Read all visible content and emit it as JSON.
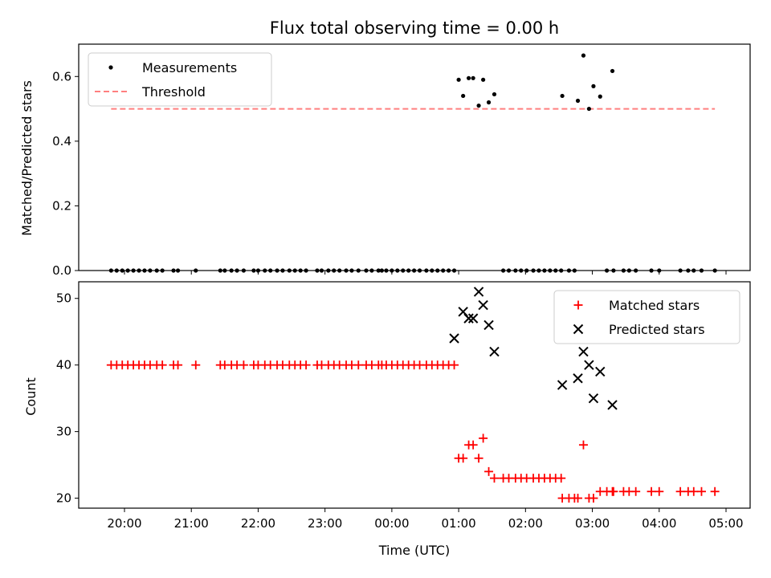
{
  "chart_data": [
    {
      "type": "scatter",
      "title": "Flux total observing time = 0.00 h",
      "xlabel": "",
      "ylabel": "Matched/Predicted stars",
      "ylim": [
        0,
        0.7
      ],
      "yticks": [
        "0.0",
        "0.2",
        "0.4",
        "0.6"
      ],
      "legend": {
        "placement": "top-left",
        "entries": [
          "Measurements",
          "Threshold"
        ]
      },
      "colors": {
        "measurements": "#000000",
        "threshold": "#ff7f7f"
      },
      "series": [
        {
          "name": "Measurements",
          "points": [
            [
              "19:48",
              0
            ],
            [
              "19:53",
              0
            ],
            [
              "19:58",
              0
            ],
            [
              "20:03",
              0
            ],
            [
              "20:08",
              0
            ],
            [
              "20:13",
              0
            ],
            [
              "20:18",
              0
            ],
            [
              "20:23",
              0
            ],
            [
              "20:29",
              0
            ],
            [
              "20:34",
              0
            ],
            [
              "20:44",
              0
            ],
            [
              "20:48",
              0
            ],
            [
              "21:04",
              0
            ],
            [
              "21:26",
              0
            ],
            [
              "21:30",
              0
            ],
            [
              "21:36",
              0
            ],
            [
              "21:41",
              0
            ],
            [
              "21:47",
              0
            ],
            [
              "21:56",
              0
            ],
            [
              "22:00",
              0
            ],
            [
              "22:06",
              0
            ],
            [
              "22:11",
              0
            ],
            [
              "22:17",
              0
            ],
            [
              "22:22",
              0
            ],
            [
              "22:28",
              0
            ],
            [
              "22:33",
              0
            ],
            [
              "22:38",
              0
            ],
            [
              "22:43",
              0
            ],
            [
              "22:53",
              0
            ],
            [
              "22:57",
              0
            ],
            [
              "23:03",
              0
            ],
            [
              "23:08",
              0
            ],
            [
              "23:13",
              0
            ],
            [
              "23:19",
              0
            ],
            [
              "23:24",
              0
            ],
            [
              "23:30",
              0
            ],
            [
              "23:37",
              0
            ],
            [
              "23:42",
              0
            ],
            [
              "23:48",
              0
            ],
            [
              "23:51",
              0
            ],
            [
              "23:55",
              0
            ],
            [
              "24:00",
              0
            ],
            [
              "24:05",
              0
            ],
            [
              "24:10",
              0
            ],
            [
              "24:15",
              0
            ],
            [
              "24:20",
              0
            ],
            [
              "24:25",
              0
            ],
            [
              "24:31",
              0
            ],
            [
              "24:36",
              0
            ],
            [
              "24:41",
              0
            ],
            [
              "24:46",
              0
            ],
            [
              "24:51",
              0
            ],
            [
              "24:56",
              0
            ],
            [
              "25:40",
              0
            ],
            [
              "25:45",
              0
            ],
            [
              "25:51",
              0
            ],
            [
              "25:56",
              0
            ],
            [
              "26:01",
              0
            ],
            [
              "26:07",
              0
            ],
            [
              "26:12",
              0
            ],
            [
              "26:17",
              0
            ],
            [
              "26:22",
              0
            ],
            [
              "26:27",
              0
            ],
            [
              "26:32",
              0
            ],
            [
              "26:39",
              0
            ],
            [
              "26:44",
              0
            ],
            [
              "27:13",
              0
            ],
            [
              "27:19",
              0
            ],
            [
              "27:28",
              0
            ],
            [
              "27:33",
              0
            ],
            [
              "27:39",
              0
            ],
            [
              "27:53",
              0
            ],
            [
              "28:00",
              0
            ],
            [
              "28:19",
              0
            ],
            [
              "28:26",
              0
            ],
            [
              "28:31",
              0
            ],
            [
              "28:38",
              0
            ],
            [
              "28:50",
              0
            ],
            [
              "25:00",
              0.59
            ],
            [
              "25:04",
              0.54
            ],
            [
              "25:09",
              0.595
            ],
            [
              "25:13",
              0.595
            ],
            [
              "25:18",
              0.51
            ],
            [
              "25:22",
              0.59
            ],
            [
              "25:27",
              0.52
            ],
            [
              "25:32",
              0.545
            ],
            [
              "26:33",
              0.54
            ],
            [
              "26:47",
              0.525
            ],
            [
              "26:52",
              0.665
            ],
            [
              "26:57",
              0.5
            ],
            [
              "27:01",
              0.57
            ],
            [
              "27:07",
              0.538
            ],
            [
              "27:18",
              0.617
            ]
          ]
        },
        {
          "name": "Threshold",
          "x": [
            "19:48",
            "28:50"
          ],
          "values": [
            0.5,
            0.5
          ]
        }
      ]
    },
    {
      "type": "scatter",
      "title": "",
      "xlabel": "Time (UTC)",
      "ylabel": "Count",
      "ylim": [
        18.5,
        52.5
      ],
      "yticks": [
        "20",
        "30",
        "40",
        "50"
      ],
      "xticks": [
        "20:00",
        "21:00",
        "22:00",
        "23:00",
        "00:00",
        "01:00",
        "02:00",
        "03:00",
        "04:00",
        "05:00"
      ],
      "legend": {
        "placement": "top-right",
        "entries": [
          "Matched stars",
          "Predicted stars"
        ]
      },
      "colors": {
        "matched": "#ff0000",
        "predicted": "#000000"
      },
      "series": [
        {
          "name": "Matched stars",
          "points": [
            [
              "19:48",
              40
            ],
            [
              "19:53",
              40
            ],
            [
              "19:58",
              40
            ],
            [
              "20:03",
              40
            ],
            [
              "20:08",
              40
            ],
            [
              "20:13",
              40
            ],
            [
              "20:18",
              40
            ],
            [
              "20:23",
              40
            ],
            [
              "20:29",
              40
            ],
            [
              "20:34",
              40
            ],
            [
              "20:44",
              40
            ],
            [
              "20:48",
              40
            ],
            [
              "21:04",
              40
            ],
            [
              "21:26",
              40
            ],
            [
              "21:30",
              40
            ],
            [
              "21:36",
              40
            ],
            [
              "21:41",
              40
            ],
            [
              "21:47",
              40
            ],
            [
              "21:56",
              40
            ],
            [
              "22:00",
              40
            ],
            [
              "22:06",
              40
            ],
            [
              "22:11",
              40
            ],
            [
              "22:17",
              40
            ],
            [
              "22:22",
              40
            ],
            [
              "22:28",
              40
            ],
            [
              "22:33",
              40
            ],
            [
              "22:38",
              40
            ],
            [
              "22:43",
              40
            ],
            [
              "22:53",
              40
            ],
            [
              "22:57",
              40
            ],
            [
              "23:03",
              40
            ],
            [
              "23:08",
              40
            ],
            [
              "23:13",
              40
            ],
            [
              "23:19",
              40
            ],
            [
              "23:24",
              40
            ],
            [
              "23:30",
              40
            ],
            [
              "23:37",
              40
            ],
            [
              "23:42",
              40
            ],
            [
              "23:48",
              40
            ],
            [
              "23:51",
              40
            ],
            [
              "23:55",
              40
            ],
            [
              "24:00",
              40
            ],
            [
              "24:05",
              40
            ],
            [
              "24:10",
              40
            ],
            [
              "24:15",
              40
            ],
            [
              "24:20",
              40
            ],
            [
              "24:25",
              40
            ],
            [
              "24:31",
              40
            ],
            [
              "24:36",
              40
            ],
            [
              "24:41",
              40
            ],
            [
              "24:46",
              40
            ],
            [
              "24:51",
              40
            ],
            [
              "24:56",
              40
            ],
            [
              "25:00",
              26
            ],
            [
              "25:04",
              26
            ],
            [
              "25:09",
              28
            ],
            [
              "25:13",
              28
            ],
            [
              "25:18",
              26
            ],
            [
              "25:22",
              29
            ],
            [
              "25:27",
              24
            ],
            [
              "25:32",
              23
            ],
            [
              "25:40",
              23
            ],
            [
              "25:45",
              23
            ],
            [
              "25:51",
              23
            ],
            [
              "25:56",
              23
            ],
            [
              "26:01",
              23
            ],
            [
              "26:07",
              23
            ],
            [
              "26:12",
              23
            ],
            [
              "26:17",
              23
            ],
            [
              "26:22",
              23
            ],
            [
              "26:27",
              23
            ],
            [
              "26:32",
              23
            ],
            [
              "26:33",
              20
            ],
            [
              "26:39",
              20
            ],
            [
              "26:44",
              20
            ],
            [
              "26:47",
              20
            ],
            [
              "26:52",
              28
            ],
            [
              "26:57",
              20
            ],
            [
              "27:01",
              20
            ],
            [
              "27:07",
              21
            ],
            [
              "27:13",
              21
            ],
            [
              "27:18",
              21
            ],
            [
              "27:19",
              21
            ],
            [
              "27:28",
              21
            ],
            [
              "27:33",
              21
            ],
            [
              "27:39",
              21
            ],
            [
              "27:53",
              21
            ],
            [
              "28:00",
              21
            ],
            [
              "28:19",
              21
            ],
            [
              "28:26",
              21
            ],
            [
              "28:31",
              21
            ],
            [
              "28:38",
              21
            ],
            [
              "28:50",
              21
            ]
          ]
        },
        {
          "name": "Predicted stars",
          "points": [
            [
              "24:56",
              44
            ],
            [
              "25:04",
              48
            ],
            [
              "25:09",
              47
            ],
            [
              "25:13",
              47
            ],
            [
              "25:18",
              51
            ],
            [
              "25:22",
              49
            ],
            [
              "25:27",
              46
            ],
            [
              "25:32",
              42
            ],
            [
              "26:33",
              37
            ],
            [
              "26:47",
              38
            ],
            [
              "26:52",
              42
            ],
            [
              "26:57",
              40
            ],
            [
              "27:01",
              35
            ],
            [
              "27:07",
              39
            ],
            [
              "27:18",
              34
            ]
          ]
        }
      ]
    }
  ]
}
